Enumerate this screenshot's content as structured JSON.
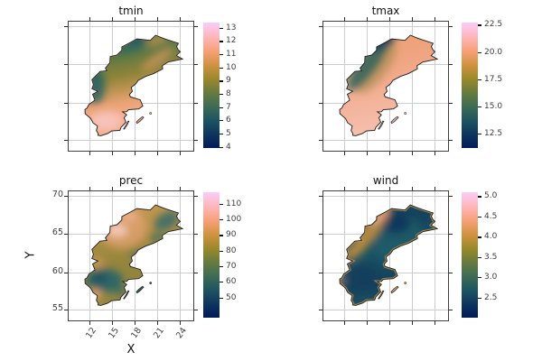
{
  "figure": {
    "background": "#ffffff",
    "xlabel": "X",
    "ylabel": "Y",
    "x_tick_labels": [
      "12",
      "15",
      "18",
      "21",
      "24"
    ],
    "y_tick_labels": [
      "70",
      "65",
      "60",
      "55"
    ],
    "grid_color": "#cdcdcd",
    "frame_color": "#3f3f3f",
    "tick_label_color": "#3d3d3d",
    "colormap": {
      "name": "batlow",
      "stops": [
        "#011959",
        "#0E365E",
        "#1D5561",
        "#3E6C54",
        "#687B3E",
        "#9D892B",
        "#D29343",
        "#F8A17B",
        "#FDB7BC",
        "#FACCFA"
      ]
    }
  },
  "chart_data": [
    {
      "type": "heatmap",
      "title": "tmin",
      "region_shape": "Sweden",
      "x_range": [
        9.0,
        25.4
      ],
      "y_range": [
        53.3,
        70.9
      ],
      "x_ticks": [
        12,
        15,
        18,
        21,
        24
      ],
      "y_ticks": [
        70,
        65,
        60,
        55
      ],
      "show_tick_labels": false,
      "colorbar": {
        "vmin": 3.9,
        "vmax": 13.4,
        "tick_labels": [
          "13",
          "12",
          "11",
          "10",
          "9",
          "8",
          "7",
          "6",
          "5",
          "4"
        ]
      },
      "pattern": "low values (dark teal) in north and inland northwest; high values (salmon/pink) across the south"
    },
    {
      "type": "heatmap",
      "title": "tmax",
      "region_shape": "Sweden",
      "x_range": [
        9.0,
        25.4
      ],
      "y_range": [
        53.3,
        70.9
      ],
      "x_ticks": [
        12,
        15,
        18,
        21,
        24
      ],
      "y_ticks": [
        70,
        65,
        60,
        55
      ],
      "show_tick_labels": false,
      "colorbar": {
        "vmin": 11.2,
        "vmax": 22.7,
        "tick_labels": [
          "22.5",
          "20.0",
          "17.5",
          "15.0",
          "12.5"
        ]
      },
      "pattern": "cool values (dark teal/green) only along the northwest mountain ridge and far north; warm salmon-pink over most of the country, lightest pink in the south"
    },
    {
      "type": "heatmap",
      "title": "prec",
      "region_shape": "Sweden",
      "x_range": [
        9.0,
        25.4
      ],
      "y_range": [
        53.3,
        70.9
      ],
      "x_ticks": [
        12,
        15,
        18,
        21,
        24
      ],
      "y_ticks": [
        70,
        65,
        60,
        55
      ],
      "show_tick_labels": true,
      "colorbar": {
        "vmin": 37,
        "vmax": 117.5,
        "tick_labels": [
          "110",
          "100",
          "90",
          "80",
          "70",
          "60",
          "50"
        ]
      },
      "pattern": "mostly olive/orange; wettest (pink) patches in the mid-north; driest (dark teal) in south-central interior, northeast coast and Gotland"
    },
    {
      "type": "heatmap",
      "title": "wind",
      "region_shape": "Sweden",
      "x_range": [
        9.0,
        25.4
      ],
      "y_range": [
        53.3,
        70.9
      ],
      "x_ticks": [
        12,
        15,
        18,
        21,
        24
      ],
      "y_ticks": [
        70,
        65,
        60,
        55
      ],
      "show_tick_labels": false,
      "colorbar": {
        "vmin": 2.0,
        "vmax": 5.1,
        "tick_labels": [
          "5.0",
          "4.5",
          "4.0",
          "3.5",
          "3.0",
          "2.5"
        ]
      },
      "pattern": "low wind (dark navy/teal) over most inland areas; high wind (gold/salmon/pink) along the northwest mountain ridge and coastal fringes"
    }
  ]
}
